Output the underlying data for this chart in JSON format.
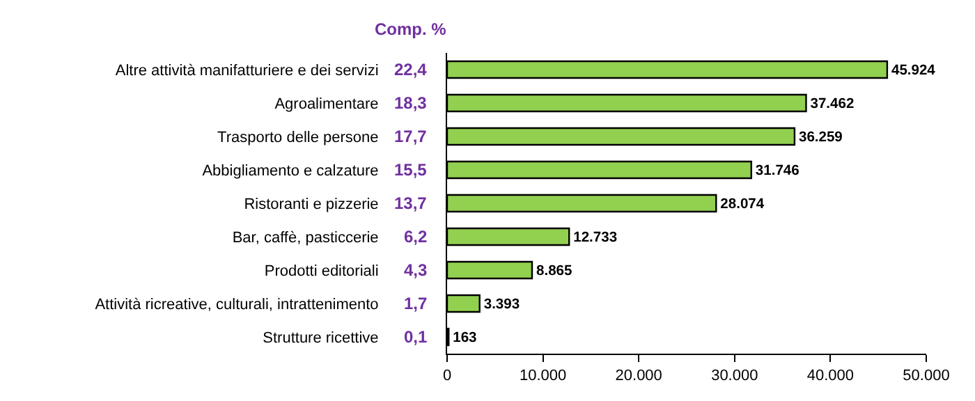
{
  "chart_data": {
    "type": "bar",
    "orientation": "horizontal",
    "categories": [
      "Altre attività manifatturiere e dei servizi",
      "Agroalimentare",
      "Trasporto delle persone",
      "Abbigliamento e calzature",
      "Ristoranti e pizzerie",
      "Bar, caffè, pasticcerie",
      "Prodotti editoriali",
      "Attività ricreative, culturali, intrattenimento",
      "Strutture ricettive"
    ],
    "values": [
      45924,
      37462,
      36259,
      31746,
      28074,
      12733,
      8865,
      3393,
      163
    ],
    "value_labels": [
      "45.924",
      "37.462",
      "36.259",
      "31.746",
      "28.074",
      "12.733",
      "8.865",
      "3.393",
      "163"
    ],
    "color": "#92d050",
    "xlim": [
      0,
      50000
    ],
    "xticks": [
      0,
      {
        "value": 10000,
        "label": "10.000"
      },
      {
        "value": 20000,
        "label": "20.000"
      },
      {
        "value": 30000,
        "label": "30.000"
      },
      {
        "value": 40000,
        "label": "40.000"
      },
      {
        "value": 50000,
        "label": "50.000"
      }
    ],
    "legend": false,
    "annotations": [
      "Comp. %",
      "22,4",
      "18,3",
      "17,7",
      "15,5",
      "13,7",
      "6,2",
      "4,3",
      "1,7",
      "0,1"
    ]
  }
}
